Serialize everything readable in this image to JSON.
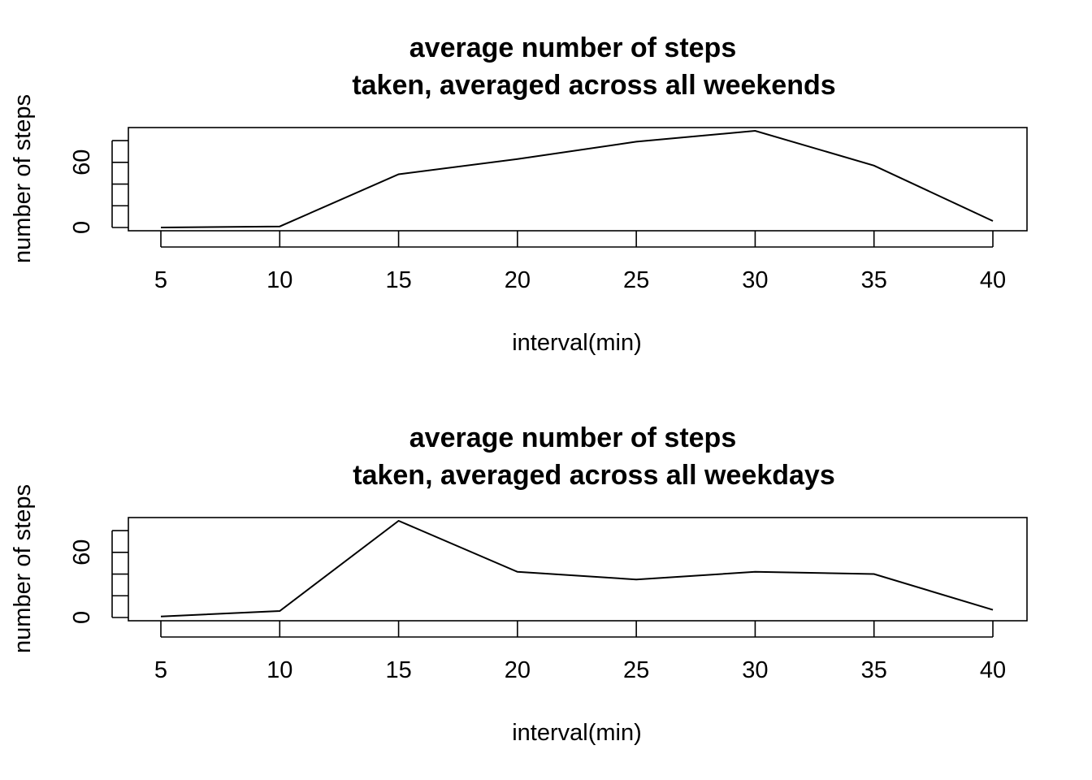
{
  "chart_data": [
    {
      "type": "line",
      "title_lines": [
        "average number of steps",
        "taken, averaged across all weekends"
      ],
      "xlabel": "interval(min)",
      "ylabel": "number of steps",
      "x": [
        5,
        10,
        15,
        20,
        25,
        30,
        35,
        40
      ],
      "values": [
        0,
        1,
        49,
        63,
        79,
        89,
        57,
        6
      ],
      "xticks": [
        "5",
        "10",
        "15",
        "20",
        "25",
        "30",
        "35",
        "40"
      ],
      "yticks_labeled": [
        "0",
        "60"
      ],
      "ylim": [
        -3,
        92
      ],
      "grid": false
    },
    {
      "type": "line",
      "title_lines": [
        "average number of steps",
        "taken, averaged across all weekdays"
      ],
      "xlabel": "interval(min)",
      "ylabel": "number of steps",
      "x": [
        5,
        10,
        15,
        20,
        25,
        30,
        35,
        40
      ],
      "values": [
        1,
        6,
        89,
        42,
        35,
        42,
        40,
        7
      ],
      "xticks": [
        "5",
        "10",
        "15",
        "20",
        "25",
        "30",
        "35",
        "40"
      ],
      "yticks_labeled": [
        "0",
        "60"
      ],
      "ylim": [
        -3,
        92
      ],
      "grid": false
    }
  ]
}
